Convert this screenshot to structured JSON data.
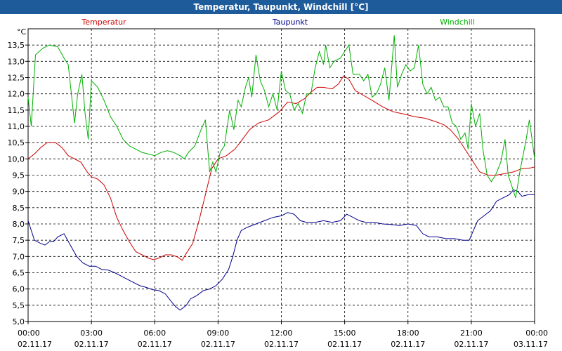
{
  "window": {
    "title": "Temperatur, Taupunkt, Windchill [°C]"
  },
  "chart_data": {
    "type": "line",
    "title": "Temperatur, Taupunkt, Windchill [°C]",
    "ylabel": "°C",
    "ylim": [
      5.0,
      14.0
    ],
    "y_ticks": [
      "13,5",
      "13,0",
      "12,5",
      "12,0",
      "11,5",
      "11,0",
      "10,5",
      "10,0",
      "9,5",
      "9,0",
      "8,5",
      "8,0",
      "7,5",
      "7,0",
      "6,5",
      "6,0",
      "5,5",
      "5,0"
    ],
    "x_range_hours": [
      0,
      24
    ],
    "x_ticks": [
      {
        "time": "00:00",
        "date": "02.11.17"
      },
      {
        "time": "03:00",
        "date": "02.11.17"
      },
      {
        "time": "06:00",
        "date": "02.11.17"
      },
      {
        "time": "09:00",
        "date": "02.11.17"
      },
      {
        "time": "12:00",
        "date": "02.11.17"
      },
      {
        "time": "15:00",
        "date": "02.11.17"
      },
      {
        "time": "18:00",
        "date": "02.11.17"
      },
      {
        "time": "21:00",
        "date": "02.11.17"
      },
      {
        "time": "00:00",
        "date": "03.11.17"
      }
    ],
    "grid": true,
    "legend_position": "top",
    "series": [
      {
        "name": "Temperatur",
        "color": "#cc0000",
        "points": [
          [
            0.0,
            10.0
          ],
          [
            0.3,
            10.15
          ],
          [
            0.6,
            10.35
          ],
          [
            0.9,
            10.5
          ],
          [
            1.3,
            10.5
          ],
          [
            1.6,
            10.35
          ],
          [
            1.9,
            10.1
          ],
          [
            2.2,
            10.0
          ],
          [
            2.5,
            9.9
          ],
          [
            2.8,
            9.6
          ],
          [
            3.0,
            9.45
          ],
          [
            3.3,
            9.38
          ],
          [
            3.6,
            9.2
          ],
          [
            3.9,
            8.8
          ],
          [
            4.2,
            8.2
          ],
          [
            4.5,
            7.8
          ],
          [
            4.8,
            7.45
          ],
          [
            5.1,
            7.15
          ],
          [
            5.4,
            7.05
          ],
          [
            5.7,
            6.95
          ],
          [
            5.95,
            6.9
          ],
          [
            6.2,
            6.95
          ],
          [
            6.5,
            7.05
          ],
          [
            6.8,
            7.05
          ],
          [
            7.1,
            6.98
          ],
          [
            7.3,
            6.88
          ],
          [
            7.5,
            7.1
          ],
          [
            7.8,
            7.4
          ],
          [
            8.1,
            8.1
          ],
          [
            8.4,
            8.9
          ],
          [
            8.7,
            9.7
          ],
          [
            9.0,
            10.0
          ],
          [
            9.4,
            10.1
          ],
          [
            9.8,
            10.3
          ],
          [
            10.1,
            10.55
          ],
          [
            10.5,
            10.9
          ],
          [
            10.9,
            11.1
          ],
          [
            11.4,
            11.2
          ],
          [
            11.9,
            11.45
          ],
          [
            12.3,
            11.75
          ],
          [
            12.7,
            11.7
          ],
          [
            13.1,
            11.85
          ],
          [
            13.4,
            12.05
          ],
          [
            13.7,
            12.2
          ],
          [
            14.0,
            12.2
          ],
          [
            14.4,
            12.15
          ],
          [
            14.7,
            12.3
          ],
          [
            14.95,
            12.55
          ],
          [
            15.2,
            12.45
          ],
          [
            15.5,
            12.1
          ],
          [
            15.9,
            11.95
          ],
          [
            16.3,
            11.8
          ],
          [
            16.8,
            11.6
          ],
          [
            17.3,
            11.45
          ],
          [
            17.8,
            11.38
          ],
          [
            18.3,
            11.3
          ],
          [
            18.8,
            11.25
          ],
          [
            19.3,
            11.15
          ],
          [
            19.7,
            11.05
          ],
          [
            20.0,
            10.9
          ],
          [
            20.4,
            10.6
          ],
          [
            20.8,
            10.2
          ],
          [
            21.1,
            9.9
          ],
          [
            21.4,
            9.6
          ],
          [
            21.8,
            9.5
          ],
          [
            22.2,
            9.5
          ],
          [
            22.6,
            9.55
          ],
          [
            23.0,
            9.6
          ],
          [
            23.4,
            9.7
          ],
          [
            23.8,
            9.72
          ],
          [
            24.0,
            9.75
          ]
        ]
      },
      {
        "name": "Taupunkt",
        "color": "#00008b",
        "points": [
          [
            0.0,
            8.1
          ],
          [
            0.3,
            7.5
          ],
          [
            0.6,
            7.4
          ],
          [
            0.8,
            7.35
          ],
          [
            1.0,
            7.45
          ],
          [
            1.2,
            7.45
          ],
          [
            1.4,
            7.6
          ],
          [
            1.7,
            7.7
          ],
          [
            2.0,
            7.35
          ],
          [
            2.3,
            7.0
          ],
          [
            2.6,
            6.8
          ],
          [
            2.9,
            6.7
          ],
          [
            3.2,
            6.7
          ],
          [
            3.5,
            6.6
          ],
          [
            3.8,
            6.58
          ],
          [
            4.1,
            6.5
          ],
          [
            4.4,
            6.4
          ],
          [
            4.7,
            6.3
          ],
          [
            5.0,
            6.2
          ],
          [
            5.3,
            6.1
          ],
          [
            5.6,
            6.05
          ],
          [
            5.9,
            5.98
          ],
          [
            6.2,
            5.95
          ],
          [
            6.5,
            5.85
          ],
          [
            6.8,
            5.6
          ],
          [
            7.0,
            5.45
          ],
          [
            7.2,
            5.35
          ],
          [
            7.5,
            5.5
          ],
          [
            7.7,
            5.7
          ],
          [
            8.0,
            5.8
          ],
          [
            8.3,
            5.95
          ],
          [
            8.6,
            6.0
          ],
          [
            8.9,
            6.1
          ],
          [
            9.2,
            6.3
          ],
          [
            9.5,
            6.6
          ],
          [
            9.7,
            7.0
          ],
          [
            9.9,
            7.5
          ],
          [
            10.1,
            7.8
          ],
          [
            10.4,
            7.9
          ],
          [
            10.8,
            8.0
          ],
          [
            11.2,
            8.1
          ],
          [
            11.6,
            8.2
          ],
          [
            12.0,
            8.25
          ],
          [
            12.3,
            8.35
          ],
          [
            12.6,
            8.3
          ],
          [
            12.9,
            8.1
          ],
          [
            13.2,
            8.05
          ],
          [
            13.6,
            8.05
          ],
          [
            14.0,
            8.1
          ],
          [
            14.4,
            8.05
          ],
          [
            14.8,
            8.1
          ],
          [
            15.1,
            8.3
          ],
          [
            15.4,
            8.2
          ],
          [
            15.7,
            8.1
          ],
          [
            16.0,
            8.05
          ],
          [
            16.4,
            8.05
          ],
          [
            16.8,
            8.0
          ],
          [
            17.2,
            7.98
          ],
          [
            17.6,
            7.95
          ],
          [
            18.0,
            8.0
          ],
          [
            18.4,
            7.95
          ],
          [
            18.7,
            7.7
          ],
          [
            19.0,
            7.6
          ],
          [
            19.4,
            7.6
          ],
          [
            19.8,
            7.55
          ],
          [
            20.2,
            7.55
          ],
          [
            20.6,
            7.5
          ],
          [
            20.9,
            7.5
          ],
          [
            21.1,
            7.8
          ],
          [
            21.3,
            8.1
          ],
          [
            21.6,
            8.25
          ],
          [
            21.9,
            8.4
          ],
          [
            22.2,
            8.7
          ],
          [
            22.5,
            8.8
          ],
          [
            22.8,
            8.9
          ],
          [
            23.0,
            9.05
          ],
          [
            23.2,
            9.0
          ],
          [
            23.4,
            8.85
          ],
          [
            23.7,
            8.9
          ],
          [
            24.0,
            8.9
          ]
        ]
      },
      {
        "name": "Windchill",
        "color": "#00b000",
        "points": [
          [
            0.0,
            11.9
          ],
          [
            0.15,
            11.0
          ],
          [
            0.35,
            13.2
          ],
          [
            0.7,
            13.4
          ],
          [
            1.0,
            13.5
          ],
          [
            1.4,
            13.45
          ],
          [
            1.7,
            13.1
          ],
          [
            1.9,
            12.9
          ],
          [
            2.05,
            12.0
          ],
          [
            2.2,
            11.1
          ],
          [
            2.35,
            12.0
          ],
          [
            2.55,
            12.6
          ],
          [
            2.7,
            11.4
          ],
          [
            2.85,
            10.6
          ],
          [
            3.0,
            12.4
          ],
          [
            3.3,
            12.2
          ],
          [
            3.6,
            11.8
          ],
          [
            3.9,
            11.3
          ],
          [
            4.2,
            11.0
          ],
          [
            4.5,
            10.6
          ],
          [
            4.8,
            10.4
          ],
          [
            5.1,
            10.3
          ],
          [
            5.4,
            10.2
          ],
          [
            5.7,
            10.15
          ],
          [
            6.0,
            10.1
          ],
          [
            6.3,
            10.2
          ],
          [
            6.6,
            10.25
          ],
          [
            6.9,
            10.2
          ],
          [
            7.2,
            10.1
          ],
          [
            7.4,
            10.0
          ],
          [
            7.6,
            10.2
          ],
          [
            7.9,
            10.4
          ],
          [
            8.2,
            10.9
          ],
          [
            8.4,
            11.2
          ],
          [
            8.6,
            9.6
          ],
          [
            8.75,
            9.9
          ],
          [
            8.9,
            9.6
          ],
          [
            9.1,
            10.2
          ],
          [
            9.3,
            10.4
          ],
          [
            9.55,
            11.5
          ],
          [
            9.75,
            10.9
          ],
          [
            9.95,
            11.8
          ],
          [
            10.1,
            11.6
          ],
          [
            10.3,
            12.2
          ],
          [
            10.45,
            12.5
          ],
          [
            10.6,
            11.9
          ],
          [
            10.8,
            13.2
          ],
          [
            11.0,
            12.4
          ],
          [
            11.2,
            12.1
          ],
          [
            11.4,
            11.6
          ],
          [
            11.6,
            12.0
          ],
          [
            11.8,
            11.5
          ],
          [
            12.0,
            12.7
          ],
          [
            12.2,
            12.1
          ],
          [
            12.4,
            12.0
          ],
          [
            12.6,
            11.5
          ],
          [
            12.8,
            11.7
          ],
          [
            13.0,
            11.4
          ],
          [
            13.2,
            12.0
          ],
          [
            13.4,
            12.0
          ],
          [
            13.6,
            12.8
          ],
          [
            13.8,
            13.3
          ],
          [
            14.0,
            12.9
          ],
          [
            14.1,
            13.5
          ],
          [
            14.3,
            12.8
          ],
          [
            14.5,
            13.0
          ],
          [
            14.8,
            13.1
          ],
          [
            15.0,
            13.3
          ],
          [
            15.2,
            13.5
          ],
          [
            15.4,
            12.6
          ],
          [
            15.7,
            12.6
          ],
          [
            15.9,
            12.4
          ],
          [
            16.1,
            12.6
          ],
          [
            16.3,
            11.9
          ],
          [
            16.5,
            12.0
          ],
          [
            16.7,
            12.3
          ],
          [
            16.9,
            12.8
          ],
          [
            17.1,
            11.8
          ],
          [
            17.35,
            13.8
          ],
          [
            17.5,
            12.2
          ],
          [
            17.7,
            12.6
          ],
          [
            17.9,
            12.9
          ],
          [
            18.1,
            12.7
          ],
          [
            18.3,
            12.8
          ],
          [
            18.5,
            13.5
          ],
          [
            18.7,
            12.3
          ],
          [
            18.9,
            12.0
          ],
          [
            19.1,
            12.2
          ],
          [
            19.3,
            11.8
          ],
          [
            19.5,
            11.9
          ],
          [
            19.7,
            11.6
          ],
          [
            19.9,
            11.6
          ],
          [
            20.1,
            11.1
          ],
          [
            20.3,
            11.0
          ],
          [
            20.5,
            10.6
          ],
          [
            20.7,
            10.8
          ],
          [
            20.85,
            10.3
          ],
          [
            21.0,
            11.7
          ],
          [
            21.2,
            11.0
          ],
          [
            21.4,
            11.4
          ],
          [
            21.55,
            10.3
          ],
          [
            21.75,
            9.5
          ],
          [
            21.95,
            9.3
          ],
          [
            22.15,
            9.5
          ],
          [
            22.4,
            9.9
          ],
          [
            22.6,
            10.6
          ],
          [
            22.75,
            9.5
          ],
          [
            22.9,
            9.2
          ],
          [
            23.1,
            8.8
          ],
          [
            23.3,
            9.6
          ],
          [
            23.6,
            10.6
          ],
          [
            23.75,
            11.2
          ],
          [
            23.9,
            10.5
          ],
          [
            24.0,
            10.0
          ]
        ]
      }
    ]
  }
}
